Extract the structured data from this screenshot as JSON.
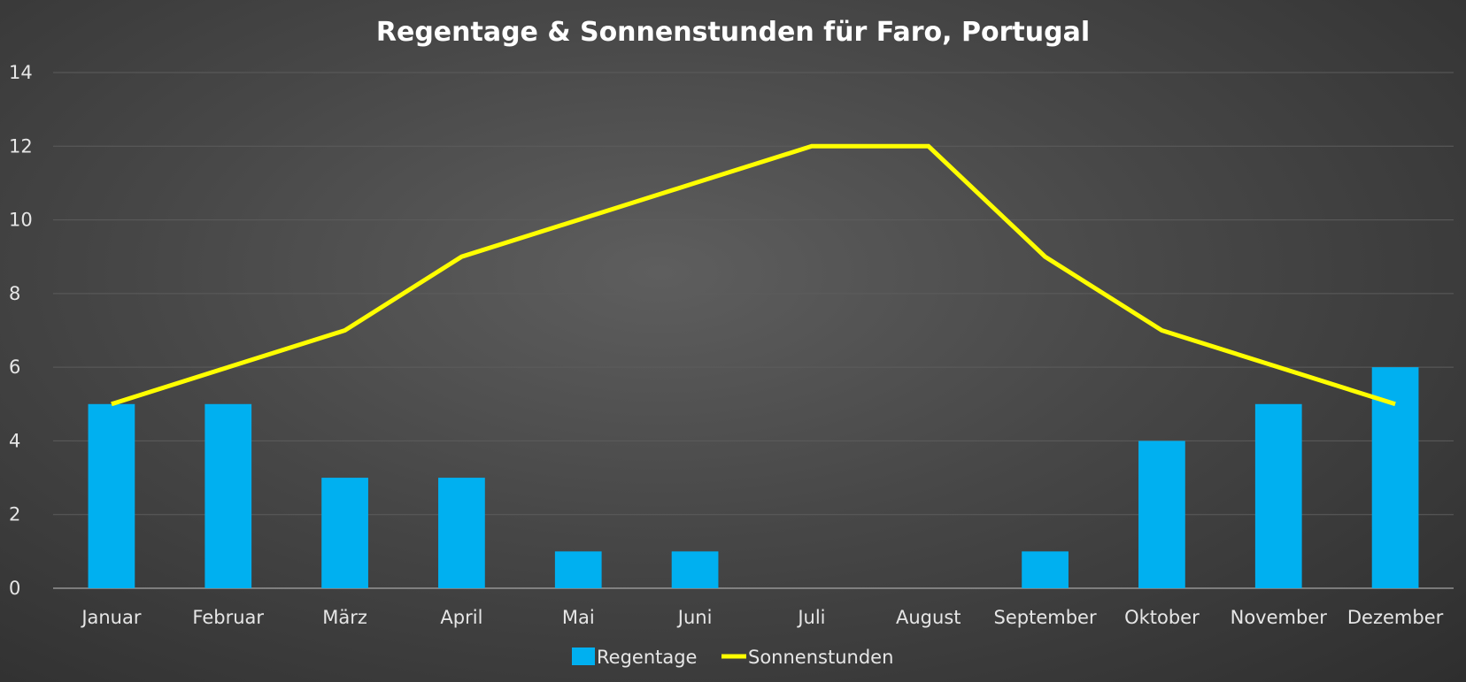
{
  "chart_data": {
    "type": "bar",
    "title": "Regentage & Sonnenstunden für Faro, Portugal",
    "categories": [
      "Januar",
      "Februar",
      "März",
      "April",
      "Mai",
      "Juni",
      "Juli",
      "August",
      "September",
      "Oktober",
      "November",
      "Dezember"
    ],
    "series": [
      {
        "name": "Regentage",
        "type": "bar",
        "color": "#00b0f0",
        "values": [
          5,
          5,
          3,
          3,
          1,
          1,
          0,
          0,
          1,
          4,
          5,
          6
        ]
      },
      {
        "name": "Sonnenstunden",
        "type": "line",
        "color": "#ffff00",
        "values": [
          5,
          6,
          7,
          9,
          10,
          11,
          12,
          12,
          9,
          7,
          6,
          5
        ]
      }
    ],
    "ylim": [
      0,
      14
    ],
    "yticks": [
      0,
      2,
      4,
      6,
      8,
      10,
      12,
      14
    ],
    "xlabel": "",
    "ylabel": "",
    "grid": true,
    "legend": "bottom"
  }
}
